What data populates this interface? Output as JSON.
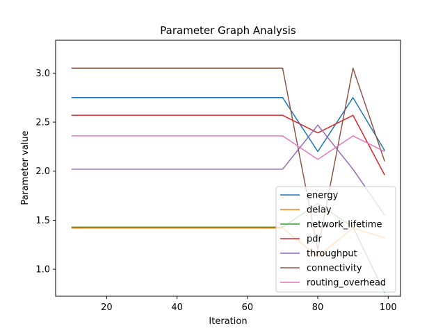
{
  "chart_data": {
    "type": "line",
    "title": "Parameter Graph Analysis",
    "xlabel": "Iteration",
    "ylabel": "Parameter value",
    "xlim": [
      5.5,
      103.5
    ],
    "ylim": [
      0.725,
      3.335
    ],
    "xticks": [
      20,
      40,
      60,
      80,
      100
    ],
    "yticks": [
      1.0,
      1.5,
      2.0,
      2.5,
      3.0
    ],
    "grid": false,
    "legend_position": "lower-right",
    "x": [
      10,
      70,
      80,
      90,
      99
    ],
    "series": [
      {
        "name": "energy",
        "color": "#1f77b4",
        "values": [
          2.75,
          2.75,
          2.2,
          2.75,
          2.21
        ]
      },
      {
        "name": "delay",
        "color": "#ff7f0e",
        "values": [
          1.42,
          1.42,
          1.13,
          1.42,
          1.32
        ]
      },
      {
        "name": "network_lifetime",
        "color": "#2ca02c",
        "values": [
          1.43,
          1.43,
          1.67,
          1.43,
          0.76
        ]
      },
      {
        "name": "pdr",
        "color": "#d62728",
        "values": [
          2.57,
          2.57,
          2.39,
          2.57,
          1.96
        ]
      },
      {
        "name": "throughput",
        "color": "#9467bd",
        "values": [
          2.02,
          2.02,
          2.47,
          2.02,
          1.55
        ]
      },
      {
        "name": "connectivity",
        "color": "#8c564b",
        "values": [
          3.05,
          3.05,
          1.2,
          3.05,
          2.1
        ]
      },
      {
        "name": "routing_overhead",
        "color": "#e377c2",
        "values": [
          2.36,
          2.36,
          2.12,
          2.36,
          2.2
        ]
      }
    ]
  }
}
